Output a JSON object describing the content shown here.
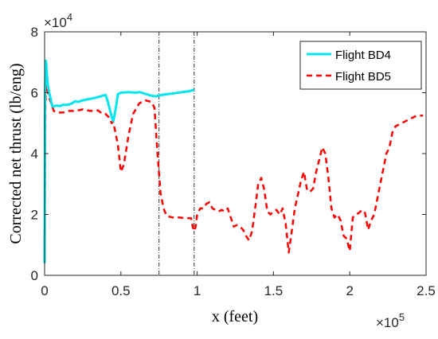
{
  "chart_data": {
    "type": "line",
    "xlabel": "x (feet)",
    "ylabel": "Corrected net thrust (lb/eng)",
    "x_exponent_label": "×10",
    "x_exponent_power": "5",
    "y_exponent_label": "×10",
    "y_exponent_power": "4",
    "xlim": [
      0,
      250000
    ],
    "ylim": [
      0,
      80000
    ],
    "x_ticks": [
      0,
      50000,
      100000,
      150000,
      200000,
      250000
    ],
    "x_tick_labels": [
      "0",
      "0.5",
      "1",
      "1.5",
      "2",
      "2.5"
    ],
    "y_ticks": [
      0,
      20000,
      40000,
      60000,
      80000
    ],
    "y_tick_labels": [
      "0",
      "2",
      "4",
      "6",
      "8"
    ],
    "grid": false,
    "legend_position": "top-right",
    "vertical_lines": [
      75000,
      98000
    ],
    "series": [
      {
        "name": "Flight BD4",
        "color": "#00e5ee",
        "style": "solid",
        "x": [
          0,
          300,
          700,
          1000,
          1500,
          2000,
          3000,
          4000,
          5000,
          6000,
          8000,
          10000,
          12000,
          15000,
          18000,
          20000,
          22000,
          25000,
          28000,
          30000,
          33000,
          36000,
          40000,
          41500,
          43000,
          44000,
          45000,
          46000,
          47000,
          48000,
          50000,
          55000,
          60000,
          62000,
          65000,
          70000,
          73000,
          75000,
          80000,
          85000,
          90000,
          95000,
          98000
        ],
        "y": [
          4000,
          60000,
          70500,
          70000,
          66000,
          63000,
          60000,
          58000,
          55500,
          55500,
          55800,
          55600,
          56000,
          56000,
          56500,
          57200,
          57000,
          57500,
          57800,
          58000,
          58300,
          58700,
          59300,
          57000,
          54000,
          52000,
          50700,
          53000,
          56000,
          59500,
          60000,
          60200,
          60000,
          60200,
          59800,
          59000,
          58800,
          59100,
          59500,
          59800,
          60200,
          60500,
          61000
        ]
      },
      {
        "name": "Flight BD5",
        "color": "#ff0000",
        "style": "dashed",
        "x": [
          0,
          500,
          1000,
          1500,
          2500,
          4000,
          6000,
          8000,
          12000,
          16000,
          20000,
          25000,
          30000,
          35000,
          38000,
          40000,
          42000,
          44000,
          45000,
          46000,
          48000,
          50000,
          52000,
          55000,
          58000,
          62000,
          66000,
          70000,
          72000,
          74000,
          76000,
          78000,
          80000,
          84000,
          88000,
          92000,
          96000,
          97000,
          98000,
          99000,
          100000,
          102000,
          104000,
          106000,
          108000,
          110000,
          112000,
          114000,
          116000,
          118000,
          120000,
          122000,
          124000,
          126000,
          128000,
          130000,
          132000,
          134000,
          136000,
          138000,
          140000,
          142000,
          144000,
          146000,
          148000,
          150000,
          152000,
          154000,
          156000,
          158000,
          160000,
          162000,
          164000,
          166000,
          168000,
          170000,
          172000,
          174000,
          176000,
          178000,
          180000,
          182000,
          184000,
          186000,
          188000,
          190000,
          192000,
          194000,
          196000,
          198000,
          200000,
          202000,
          204000,
          206000,
          208000,
          210000,
          212000,
          214000,
          216000,
          218000,
          220000,
          222000,
          224000,
          226000,
          228000,
          230000,
          232000,
          234000,
          236000,
          238000,
          240000,
          242000,
          244000,
          246000,
          248000
        ],
        "y": [
          4000,
          55000,
          64000,
          62000,
          59000,
          57000,
          54000,
          53500,
          53500,
          54000,
          54000,
          54500,
          54000,
          54200,
          53000,
          53000,
          52000,
          50000,
          50500,
          48000,
          43000,
          34000,
          36500,
          46000,
          53000,
          56500,
          57500,
          57000,
          55000,
          40000,
          27000,
          22000,
          19500,
          19000,
          19000,
          18800,
          18800,
          16000,
          14500,
          16000,
          20000,
          22000,
          22000,
          23500,
          24000,
          22000,
          21500,
          21000,
          21500,
          21000,
          22000,
          19000,
          16000,
          16500,
          16000,
          15000,
          13000,
          11500,
          14500,
          22000,
          30000,
          32000,
          28000,
          21000,
          20000,
          21000,
          21500,
          20000,
          22000,
          17000,
          7500,
          14500,
          22000,
          26500,
          31000,
          34000,
          28000,
          27500,
          28500,
          34000,
          38000,
          42000,
          40000,
          32000,
          22000,
          19000,
          20000,
          18000,
          13000,
          12000,
          8000,
          19000,
          20000,
          20500,
          21500,
          20500,
          15000,
          18000,
          20000,
          25000,
          30000,
          35000,
          40000,
          42000,
          47000,
          49000,
          49500,
          50000,
          50500,
          51000,
          51500,
          52000,
          52500,
          52500,
          52500
        ]
      }
    ]
  }
}
